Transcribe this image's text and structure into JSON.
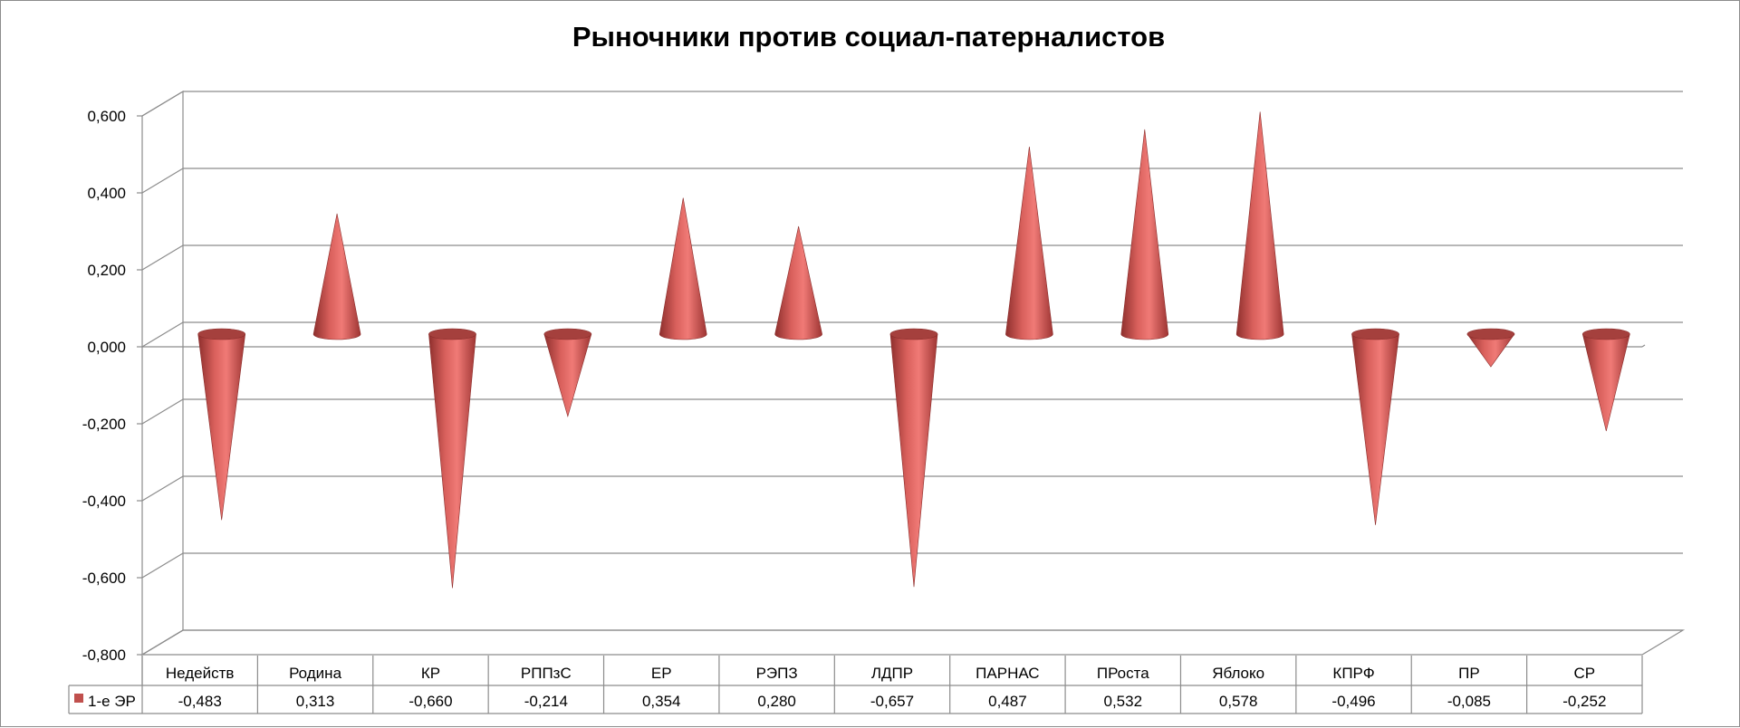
{
  "chart_data": {
    "type": "cone-column-3d",
    "title": "Рыночники против социал-патерналистов",
    "categories": [
      "Недейств",
      "Родина",
      "КР",
      "РППзС",
      "ЕР",
      "РЭПЗ",
      "ЛДПР",
      "ПАРНАС",
      "ПРоста",
      "Яблоко",
      "КПРФ",
      "ПР",
      "СР"
    ],
    "series": [
      {
        "name": "1-е ЭР",
        "values": [
          -0.483,
          0.313,
          -0.66,
          -0.214,
          0.354,
          0.28,
          -0.657,
          0.487,
          0.532,
          0.578,
          -0.496,
          -0.085,
          -0.252
        ],
        "value_labels": [
          "-0,483",
          "0,313",
          "-0,660",
          "-0,214",
          "0,354",
          "0,280",
          "-0,657",
          "0,487",
          "0,532",
          "0,578",
          "-0,496",
          "-0,085",
          "-0,252"
        ],
        "color": "#c0504d"
      }
    ],
    "yticks": [
      0.6,
      0.4,
      0.2,
      0.0,
      -0.2,
      -0.4,
      -0.6,
      -0.8
    ],
    "ytick_labels": [
      "0,600",
      "0,400",
      "0,200",
      "0,000",
      "-0,200",
      "-0,400",
      "-0,600",
      "-0,800"
    ],
    "ylim": [
      -0.8,
      0.6
    ],
    "grid": true,
    "legend": "data-table-left"
  }
}
